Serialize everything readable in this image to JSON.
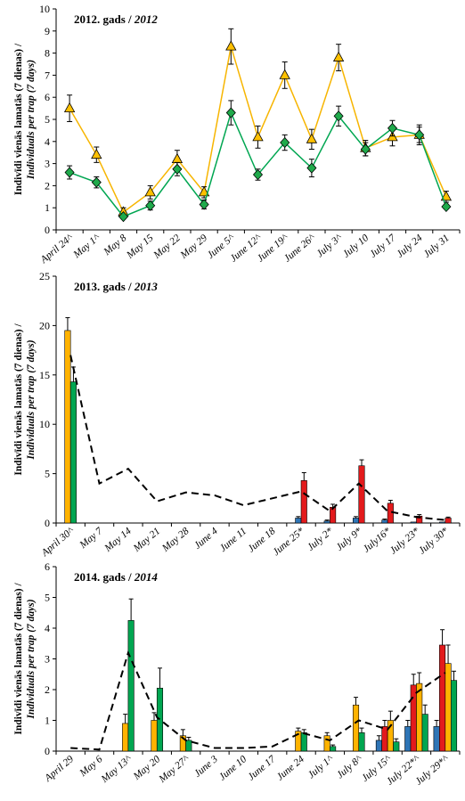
{
  "chart_data": [
    {
      "type": "line",
      "title": "2012. gads / ",
      "title_italic": "2012",
      "ylabel_line1": "Indivīdi vienās lamatās (7 dienas) /",
      "ylabel_line2": "Individuals per trap (7 days)",
      "ylim": [
        0,
        10
      ],
      "yticks": [
        "0",
        "1",
        "2",
        "3",
        "4",
        "5",
        "6",
        "7",
        "8",
        "9",
        "10"
      ],
      "categories": [
        "April 24^",
        "May 1^",
        "May 8",
        "May 15",
        "May 22",
        "May 29",
        "June 5^",
        "June 12^",
        "June 19^",
        "June 26^",
        "July 3^",
        "July 10",
        "July 17",
        "July 24",
        "July 31"
      ],
      "series": [
        {
          "marker": "triangle",
          "color": "#f7b500",
          "marker_fill": "#ffc000",
          "values": [
            5.5,
            3.4,
            0.8,
            1.7,
            3.2,
            1.7,
            8.3,
            4.2,
            7.0,
            4.1,
            7.8,
            3.7,
            4.2,
            4.3,
            1.5
          ],
          "errors": [
            0.6,
            0.35,
            0.2,
            0.3,
            0.4,
            0.25,
            0.8,
            0.5,
            0.6,
            0.45,
            0.6,
            0.35,
            0.4,
            0.45,
            0.25
          ]
        },
        {
          "marker": "diamond",
          "color": "#00a651",
          "marker_fill": "#1faa4b",
          "values": [
            2.6,
            2.15,
            0.6,
            1.1,
            2.75,
            1.15,
            5.3,
            2.5,
            3.95,
            2.8,
            5.15,
            3.65,
            4.6,
            4.3,
            1.05
          ],
          "errors": [
            0.3,
            0.25,
            0.1,
            0.2,
            0.3,
            0.2,
            0.55,
            0.25,
            0.35,
            0.4,
            0.45,
            0.3,
            0.35,
            0.35,
            0.1
          ]
        }
      ],
      "grid": false
    },
    {
      "type": "bar",
      "title": "2013. gads / ",
      "title_italic": "2013",
      "ylabel_line1": "Indivīdi vienās lamatās (7 dienas) /",
      "ylabel_line2": "Individuals per trap (7 days)",
      "ylim": [
        0,
        25
      ],
      "yticks": [
        "0",
        "5",
        "10",
        "15",
        "20",
        "25"
      ],
      "categories": [
        "April 30^",
        "May 7",
        "May 14",
        "May 21",
        "May 28",
        "June 4",
        "June 11",
        "June 18",
        "June 25*",
        "July 2*",
        "July 9*",
        "July16*",
        "July 23*",
        "July 30*"
      ],
      "series": [
        {
          "color": "#2e75b6",
          "values": [
            null,
            null,
            null,
            null,
            null,
            null,
            null,
            null,
            0.5,
            0.2,
            0.5,
            0.3,
            0.1,
            0.1
          ],
          "errors": [
            0,
            0,
            0,
            0,
            0,
            0,
            0,
            0,
            0.15,
            0.1,
            0.15,
            0.1,
            0,
            0
          ]
        },
        {
          "color": "#e31a1c",
          "values": [
            null,
            null,
            null,
            null,
            null,
            null,
            null,
            null,
            4.3,
            1.6,
            5.8,
            2.0,
            0.7,
            0.5
          ],
          "errors": [
            0,
            0,
            0,
            0,
            0,
            0,
            0,
            0,
            0.8,
            0.3,
            0.6,
            0.3,
            0.15,
            0.1
          ]
        },
        {
          "color": "#ffb300",
          "values": [
            19.5,
            null,
            null,
            null,
            null,
            null,
            null,
            null,
            null,
            null,
            null,
            null,
            null,
            null
          ],
          "errors": [
            1.3,
            0,
            0,
            0,
            0,
            0,
            0,
            0,
            0,
            0,
            0,
            0,
            0,
            0
          ]
        },
        {
          "color": "#00a651",
          "values": [
            14.3,
            null,
            null,
            null,
            null,
            null,
            null,
            null,
            null,
            null,
            null,
            null,
            null,
            null
          ],
          "errors": [
            1.5,
            0,
            0,
            0,
            0,
            0,
            0,
            0,
            0,
            0,
            0,
            0,
            0,
            0
          ]
        }
      ],
      "dashed_line": [
        17.0,
        4.0,
        5.5,
        2.2,
        3.1,
        2.8,
        1.8,
        2.5,
        3.2,
        1.2,
        4.0,
        1.2,
        0.6,
        0.3
      ],
      "grid": false
    },
    {
      "type": "bar",
      "title": "2014. gads / ",
      "title_italic": "2014",
      "ylabel_line1": "Indivīdi vienās lamatās (7 dienas) /",
      "ylabel_line2": "Individuals per trap (7 days)",
      "ylim": [
        0,
        6
      ],
      "yticks": [
        "0",
        "1",
        "2",
        "3",
        "4",
        "5",
        "6"
      ],
      "categories": [
        "April 29",
        "May 6",
        "May 13^",
        "May 20",
        "May 27^",
        "June 3",
        "June 10",
        "June 17",
        "June 24",
        "July 1^",
        "July 8^",
        "July 15^",
        "July 22*^",
        "July 29*^"
      ],
      "series": [
        {
          "color": "#2e75b6",
          "values": [
            null,
            null,
            null,
            null,
            null,
            null,
            null,
            null,
            null,
            null,
            null,
            0.35,
            0.8,
            0.8
          ],
          "errors": [
            0,
            0,
            0,
            0,
            0,
            0,
            0,
            0,
            0,
            0,
            0,
            0.15,
            0.2,
            0.2
          ]
        },
        {
          "color": "#e31a1c",
          "values": [
            null,
            null,
            null,
            null,
            null,
            null,
            null,
            null,
            null,
            null,
            null,
            0.8,
            2.15,
            3.45
          ],
          "errors": [
            0,
            0,
            0,
            0,
            0,
            0,
            0,
            0,
            0,
            0,
            0,
            0.2,
            0.35,
            0.5
          ]
        },
        {
          "color": "#ffb300",
          "values": [
            null,
            null,
            0.9,
            1.0,
            0.5,
            null,
            null,
            null,
            0.65,
            0.5,
            1.5,
            1.0,
            2.2,
            2.85
          ],
          "errors": [
            0,
            0,
            0.3,
            0.25,
            0.2,
            0,
            0,
            0,
            0.1,
            0.1,
            0.25,
            0.3,
            0.35,
            0.6
          ]
        },
        {
          "color": "#00a651",
          "values": [
            null,
            null,
            4.25,
            2.05,
            0.35,
            null,
            null,
            null,
            0.6,
            0.15,
            0.6,
            0.3,
            1.2,
            2.3
          ],
          "errors": [
            0,
            0,
            0.7,
            0.65,
            0.1,
            0,
            0,
            0,
            0.1,
            0.05,
            0.15,
            0.1,
            0.3,
            0.3
          ]
        }
      ],
      "dashed_line": [
        0.1,
        0.05,
        3.2,
        1.1,
        0.35,
        0.1,
        0.1,
        0.15,
        0.6,
        0.35,
        1.0,
        0.7,
        1.9,
        2.55
      ],
      "grid": false
    }
  ]
}
